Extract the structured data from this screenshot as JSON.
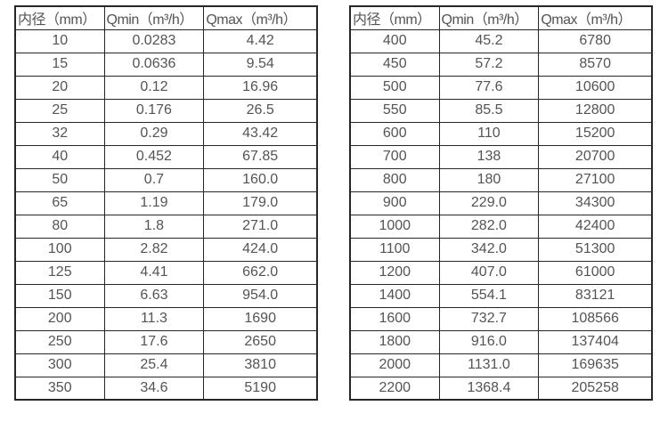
{
  "colors": {
    "background": "#ffffff",
    "border": "#262626",
    "text": "#545454"
  },
  "column_names": [
    "diameter",
    "qmin",
    "qmax"
  ],
  "table_left": {
    "headers": [
      "内径（mm）",
      "Qmin（m³/h）",
      "Qmax（m³/h）"
    ],
    "rows": [
      [
        "10",
        "0.0283",
        "4.42"
      ],
      [
        "15",
        "0.0636",
        "9.54"
      ],
      [
        "20",
        "0.12",
        "16.96"
      ],
      [
        "25",
        "0.176",
        "26.5"
      ],
      [
        "32",
        "0.29",
        "43.42"
      ],
      [
        "40",
        "0.452",
        "67.85"
      ],
      [
        "50",
        "0.7",
        "160.0"
      ],
      [
        "65",
        "1.19",
        "179.0"
      ],
      [
        "80",
        "1.8",
        "271.0"
      ],
      [
        "100",
        "2.82",
        "424.0"
      ],
      [
        "125",
        "4.41",
        "662.0"
      ],
      [
        "150",
        "6.63",
        "954.0"
      ],
      [
        "200",
        "11.3",
        "1690"
      ],
      [
        "250",
        "17.6",
        "2650"
      ],
      [
        "300",
        "25.4",
        "3810"
      ],
      [
        "350",
        "34.6",
        "5190"
      ]
    ]
  },
  "table_right": {
    "headers": [
      "内径（mm）",
      "Qmin（m³/h）",
      "Qmax（m³/h）"
    ],
    "rows": [
      [
        "400",
        "45.2",
        "6780"
      ],
      [
        "450",
        "57.2",
        "8570"
      ],
      [
        "500",
        "77.6",
        "10600"
      ],
      [
        "550",
        "85.5",
        "12800"
      ],
      [
        "600",
        "110",
        "15200"
      ],
      [
        "700",
        "138",
        "20700"
      ],
      [
        "800",
        "180",
        "27100"
      ],
      [
        "900",
        "229.0",
        "34300"
      ],
      [
        "1000",
        "282.0",
        "42400"
      ],
      [
        "1100",
        "342.0",
        "51300"
      ],
      [
        "1200",
        "407.0",
        "61000"
      ],
      [
        "1400",
        "554.1",
        "83121"
      ],
      [
        "1600",
        "732.7",
        "108566"
      ],
      [
        "1800",
        "916.0",
        "137404"
      ],
      [
        "2000",
        "1131.0",
        "169635"
      ],
      [
        "2200",
        "1368.4",
        "205258"
      ]
    ]
  }
}
